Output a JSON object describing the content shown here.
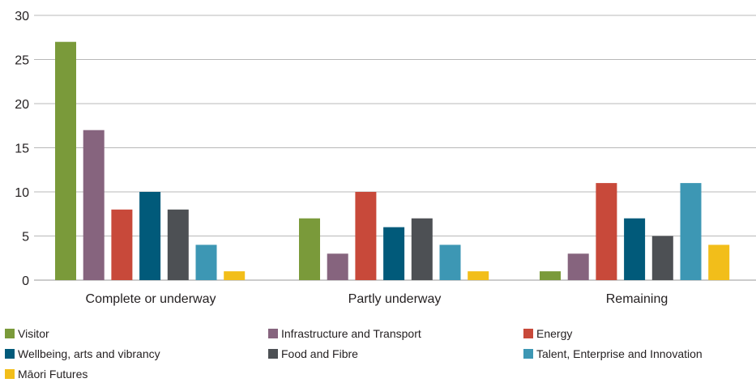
{
  "chart_data": {
    "type": "bar",
    "categories": [
      "Complete or underway",
      "Partly underway",
      "Remaining"
    ],
    "series": [
      {
        "name": "Visitor",
        "color": "#7a9a3a",
        "values": [
          27,
          7,
          1
        ]
      },
      {
        "name": "Infrastructure and Transport",
        "color": "#86647e",
        "values": [
          17,
          3,
          3
        ]
      },
      {
        "name": "Energy",
        "color": "#c8493a",
        "values": [
          8,
          10,
          11
        ]
      },
      {
        "name": "Wellbeing, arts and vibrancy",
        "color": "#015a7a",
        "values": [
          10,
          6,
          7
        ]
      },
      {
        "name": "Food and Fibre",
        "color": "#4d5054",
        "values": [
          8,
          7,
          5
        ]
      },
      {
        "name": "Talent, Enterprise and Innovation",
        "color": "#3d97b4",
        "values": [
          4,
          4,
          11
        ]
      },
      {
        "name": "Māori Futures",
        "color": "#f2be1a",
        "values": [
          1,
          1,
          4
        ]
      }
    ],
    "ylim": [
      0,
      30
    ],
    "yticks": [
      0,
      5,
      10,
      15,
      20,
      25,
      30
    ],
    "grid": true,
    "legend_position": "bottom",
    "title": "",
    "xlabel": "",
    "ylabel": ""
  }
}
